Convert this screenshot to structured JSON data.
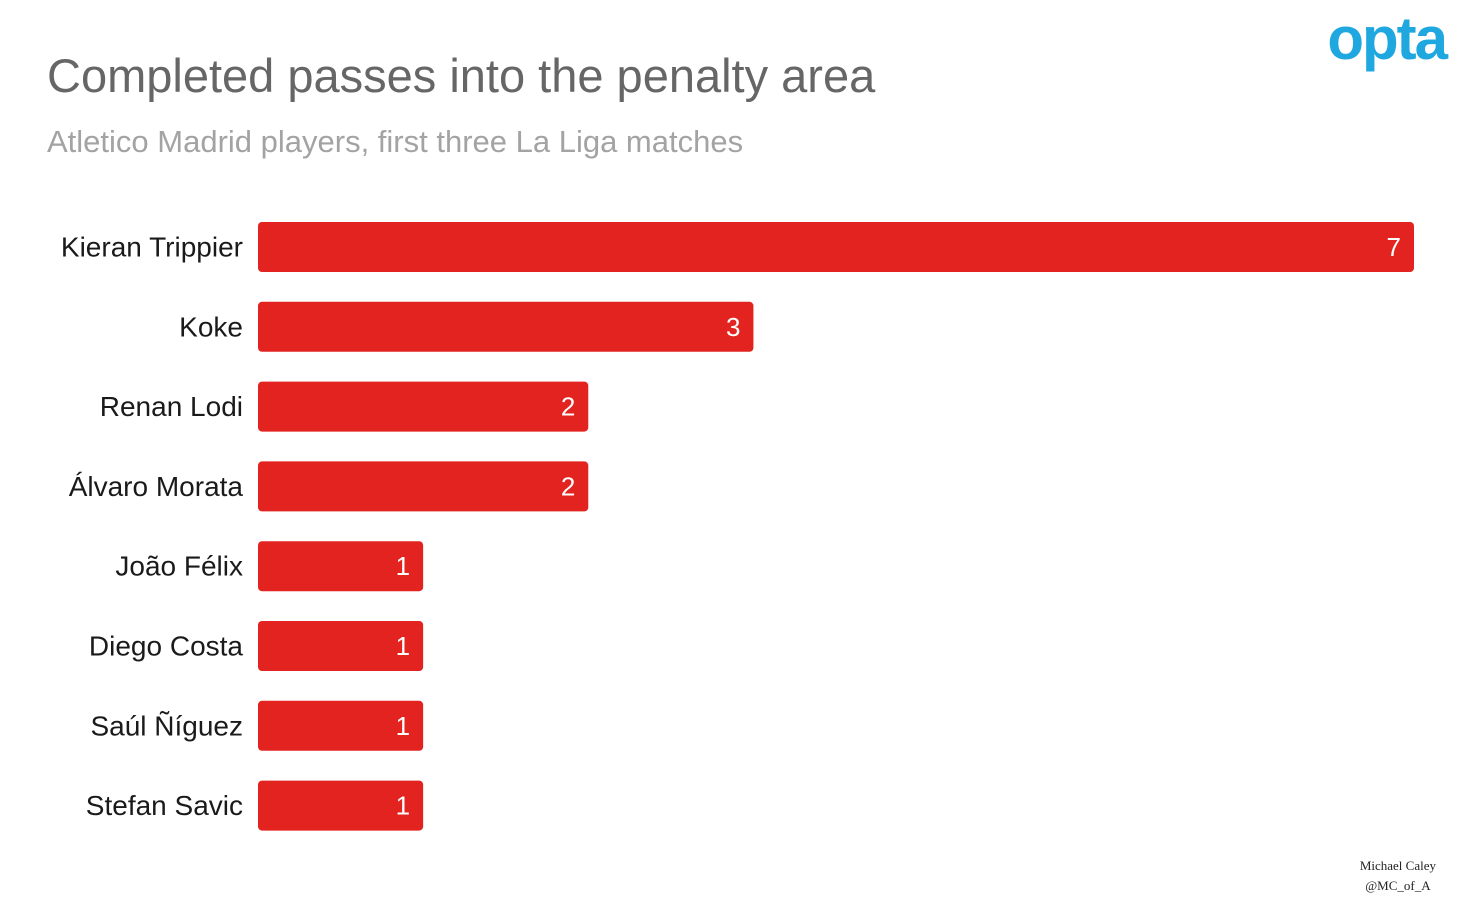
{
  "logo_text": "opta",
  "colors": {
    "bar": "#e3231f",
    "logo": "#1fa7e0",
    "title": "#666666",
    "subtitle": "#a3a3a3"
  },
  "chart_data": {
    "type": "bar",
    "orientation": "horizontal",
    "title": "Completed passes into the penalty area",
    "subtitle": "Atletico Madrid players, first three La Liga matches",
    "categories": [
      "Kieran Trippier",
      "Koke",
      "Renan Lodi",
      "Álvaro Morata",
      "João Félix",
      "Diego Costa",
      "Saúl Ñíguez",
      "Stefan Savic"
    ],
    "values": [
      7,
      3,
      2,
      2,
      1,
      1,
      1,
      1
    ],
    "xlim": [
      0,
      7
    ],
    "grid": false,
    "data_labels": true
  },
  "credit": {
    "author": "Michael Caley",
    "handle": "@MC_of_A"
  }
}
